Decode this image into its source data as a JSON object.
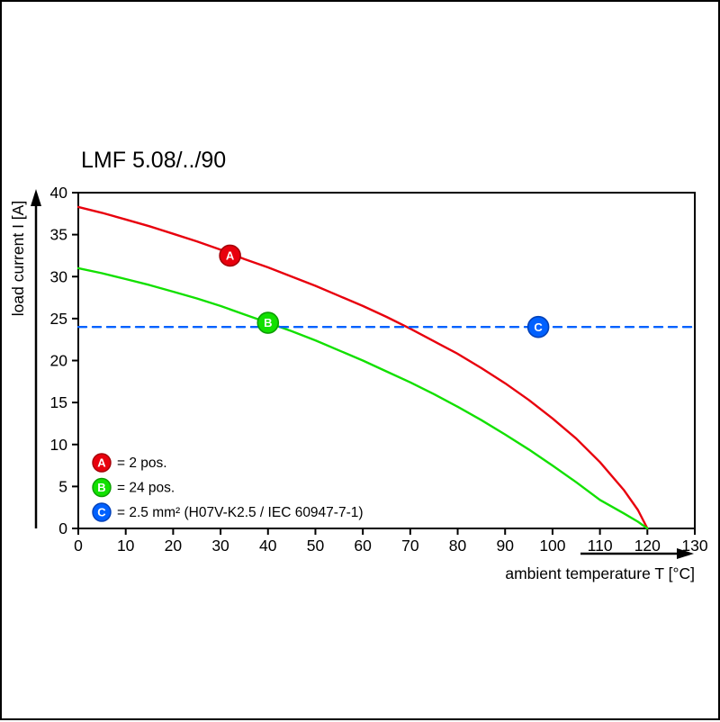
{
  "chart_data": {
    "type": "line",
    "title": "LMF 5.08/../90",
    "xlabel": "ambient temperature T [°C]",
    "ylabel": "load current I [A]",
    "xlim": [
      0,
      130
    ],
    "ylim": [
      0,
      40
    ],
    "xticks": [
      0,
      10,
      20,
      30,
      40,
      50,
      60,
      70,
      80,
      90,
      100,
      110,
      120,
      130
    ],
    "yticks": [
      0,
      5,
      10,
      15,
      20,
      25,
      30,
      35,
      40
    ],
    "grid": false,
    "legend_position": "lower-left-inside",
    "series": [
      {
        "name": "A",
        "legend": "= 2 pos.",
        "color": "#e8000d",
        "marker_edge": "#a50008",
        "style": "solid",
        "marker_at": [
          32,
          32.5
        ],
        "points": [
          [
            0,
            38.3
          ],
          [
            5,
            37.6
          ],
          [
            10,
            36.8
          ],
          [
            15,
            36.0
          ],
          [
            20,
            35.1
          ],
          [
            25,
            34.2
          ],
          [
            30,
            33.2
          ],
          [
            35,
            32.1
          ],
          [
            40,
            31.1
          ],
          [
            45,
            30.0
          ],
          [
            50,
            28.9
          ],
          [
            55,
            27.7
          ],
          [
            60,
            26.5
          ],
          [
            65,
            25.2
          ],
          [
            70,
            23.8
          ],
          [
            75,
            22.3
          ],
          [
            80,
            20.8
          ],
          [
            85,
            19.1
          ],
          [
            90,
            17.3
          ],
          [
            95,
            15.3
          ],
          [
            100,
            13.1
          ],
          [
            105,
            10.7
          ],
          [
            110,
            7.9
          ],
          [
            115,
            4.6
          ],
          [
            118,
            2.2
          ],
          [
            120,
            0
          ]
        ]
      },
      {
        "name": "B",
        "legend": "= 24 pos.",
        "color": "#12e000",
        "marker_edge": "#0b9e00",
        "style": "solid",
        "marker_at": [
          40,
          24.5
        ],
        "points": [
          [
            0,
            31.0
          ],
          [
            5,
            30.4
          ],
          [
            10,
            29.7
          ],
          [
            15,
            29.0
          ],
          [
            20,
            28.2
          ],
          [
            25,
            27.4
          ],
          [
            30,
            26.5
          ],
          [
            35,
            25.5
          ],
          [
            40,
            24.5
          ],
          [
            45,
            23.5
          ],
          [
            50,
            22.4
          ],
          [
            55,
            21.2
          ],
          [
            60,
            20.0
          ],
          [
            65,
            18.7
          ],
          [
            70,
            17.4
          ],
          [
            75,
            16.0
          ],
          [
            80,
            14.5
          ],
          [
            85,
            12.9
          ],
          [
            90,
            11.2
          ],
          [
            95,
            9.4
          ],
          [
            100,
            7.5
          ],
          [
            105,
            5.5
          ],
          [
            110,
            3.4
          ],
          [
            115,
            1.8
          ],
          [
            118,
            0.8
          ],
          [
            120,
            0
          ]
        ]
      },
      {
        "name": "C",
        "legend": "= 2.5 mm² (H07V-K2.5 / IEC 60947-7-1)",
        "color": "#0061ff",
        "marker_edge": "#0040b8",
        "style": "dashed",
        "marker_at": [
          97,
          24
        ],
        "points": [
          [
            0,
            24
          ],
          [
            130,
            24
          ]
        ]
      }
    ]
  }
}
